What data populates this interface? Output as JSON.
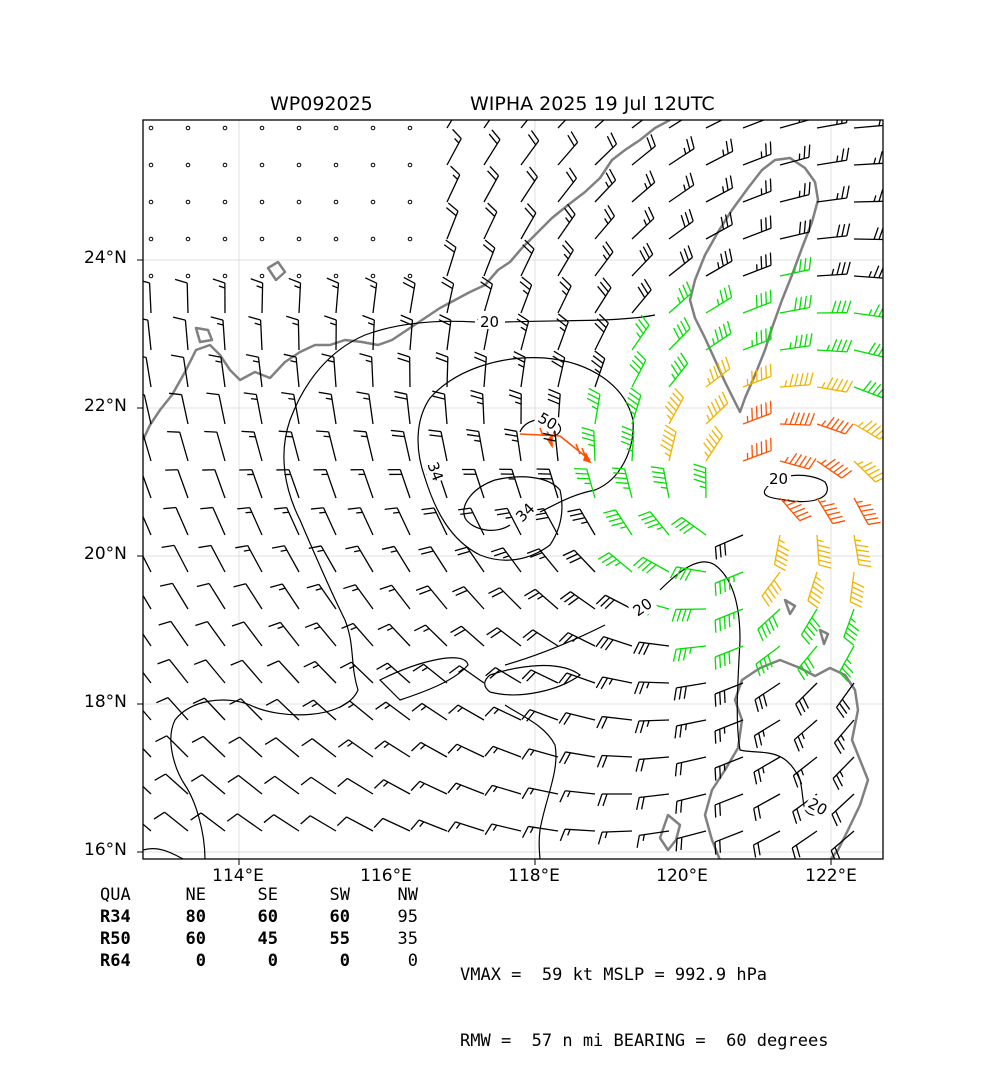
{
  "header": {
    "storm_id": "WP092025",
    "storm_title": "WIPHA 2025 19 Jul 12UTC"
  },
  "map": {
    "lat_labels": [
      "24°N",
      "22°N",
      "20°N",
      "18°N",
      "16°N"
    ],
    "lon_labels": [
      "114°E",
      "116°E",
      "118°E",
      "120°E",
      "122°E"
    ],
    "contour_labels": [
      "20",
      "50",
      "34",
      "34",
      "20",
      "20",
      "20"
    ],
    "colors": {
      "below_34kt": "#000000",
      "34_to_50kt": "#00e000",
      "50_to_64kt": "#f0b400",
      "above_64kt": "#ff5000",
      "coastline": "#808080"
    },
    "center_lat": 20.6,
    "center_lon": 117.4
  },
  "wind_radii": {
    "header": [
      "QUA",
      "NE",
      "SE",
      "SW",
      "NW"
    ],
    "rows": [
      {
        "label": "R34",
        "ne": "80",
        "se": "60",
        "sw": "60",
        "nw": "95"
      },
      {
        "label": "R50",
        "ne": "60",
        "se": "45",
        "sw": "55",
        "nw": "35"
      },
      {
        "label": "R64",
        "ne": "0",
        "se": "0",
        "sw": "0",
        "nw": "0"
      }
    ]
  },
  "stats": {
    "line1": "VMAX =  59 kt MSLP = 992.9 hPa",
    "line2": "RMW =  57 n mi BEARING =  60 degrees"
  }
}
